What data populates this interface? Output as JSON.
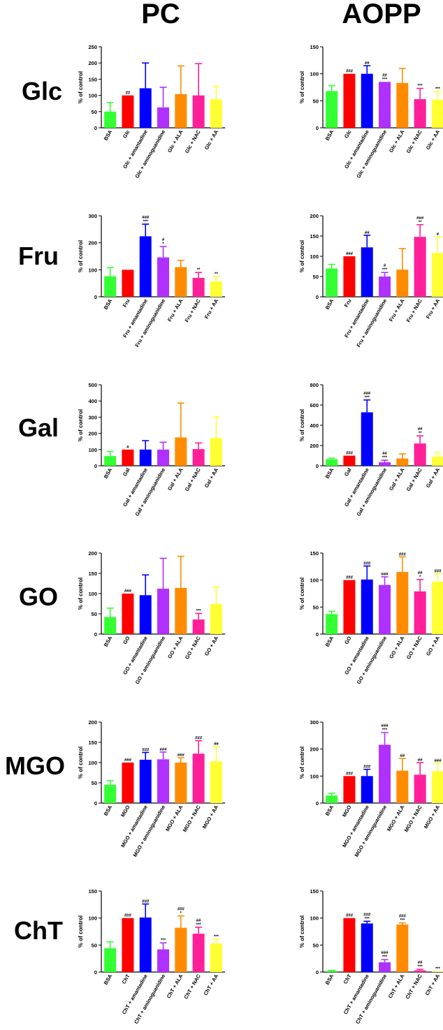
{
  "headers": {
    "pc": "PC",
    "aopp": "AOPP"
  },
  "rows": [
    "Glc",
    "Fru",
    "Gal",
    "GO",
    "MGO",
    "ChT"
  ],
  "colors": [
    "#33ff33",
    "#ff0000",
    "#0000ff",
    "#b030ff",
    "#ff8c00",
    "#ff1f99",
    "#ffff33"
  ],
  "chart_data": [
    {
      "id": "glc-pc",
      "type": "bar",
      "ylabel": "% of control",
      "ylim": [
        0,
        250
      ],
      "ticks": [
        0,
        50,
        100,
        150,
        200,
        250
      ],
      "categories": [
        "BSA",
        "Glc",
        "Glc + amantadine",
        "Glc + aminoguanidine",
        "Glc + ALA",
        "Glc + NAC",
        "Glc + AA"
      ],
      "values": [
        50,
        100,
        122,
        63,
        104,
        100,
        88
      ],
      "errors": [
        28,
        0,
        78,
        62,
        87,
        98,
        40
      ],
      "labels": [
        "",
        "##",
        "",
        "",
        "",
        "",
        ""
      ]
    },
    {
      "id": "glc-aopp",
      "type": "bar",
      "ylabel": "% of control",
      "ylim": [
        0,
        150
      ],
      "ticks": [
        0,
        50,
        100,
        150
      ],
      "categories": [
        "BSA",
        "Glc",
        "Glc + amantadine",
        "Glc + aminoguanidine",
        "Glc + ALA",
        "Glc + NAC",
        "Glc + AA"
      ],
      "values": [
        68,
        100,
        100,
        85,
        83,
        53,
        52
      ],
      "errors": [
        10,
        0,
        15,
        0,
        27,
        20,
        15
      ],
      "labels": [
        "",
        "###",
        "##",
        "##\n***",
        "",
        "***",
        "***"
      ]
    },
    {
      "id": "fru-pc",
      "type": "bar",
      "ylabel": "% of control",
      "ylim": [
        0,
        300
      ],
      "ticks": [
        0,
        100,
        200,
        300
      ],
      "categories": [
        "BSA",
        "Fru",
        "Fru + amantadine",
        "Fru + aminoguanidine",
        "Fru + ALA",
        "Fru + NAC",
        "Fru + AA"
      ],
      "values": [
        76,
        100,
        224,
        146,
        110,
        70,
        57
      ],
      "errors": [
        32,
        0,
        45,
        40,
        25,
        20,
        18
      ],
      "labels": [
        "",
        "",
        "###\n***",
        "#\n*",
        "",
        "**",
        "**"
      ]
    },
    {
      "id": "fru-aopp",
      "type": "bar",
      "ylabel": "% of control",
      "ylim": [
        0,
        200
      ],
      "ticks": [
        0,
        50,
        100,
        150,
        200
      ],
      "categories": [
        "BSA",
        "Fru",
        "Fru + amantadine",
        "Fru + aminoguanidine",
        "Fru + ALA",
        "Fru + NAC",
        "Fru + AA"
      ],
      "values": [
        70,
        100,
        122,
        50,
        67,
        148,
        108
      ],
      "errors": [
        10,
        0,
        30,
        10,
        52,
        30,
        40
      ],
      "labels": [
        "",
        "###",
        "##",
        "#\n***",
        "",
        "###\n**",
        "#"
      ]
    },
    {
      "id": "gal-pc",
      "type": "bar",
      "ylabel": "% of control",
      "ylim": [
        0,
        500
      ],
      "ticks": [
        0,
        100,
        200,
        300,
        400,
        500
      ],
      "categories": [
        "BSA",
        "Gal",
        "Gal + amantadine",
        "Gal + aminoguanidine",
        "Gal + ALA",
        "Gal + NAC",
        "Gal + AA"
      ],
      "values": [
        60,
        100,
        100,
        100,
        175,
        103,
        172
      ],
      "errors": [
        28,
        0,
        55,
        45,
        212,
        38,
        128
      ],
      "labels": [
        "",
        "#",
        "",
        "",
        "",
        "",
        ""
      ]
    },
    {
      "id": "gal-aopp",
      "type": "bar",
      "ylabel": "% of control",
      "ylim": [
        0,
        800
      ],
      "ticks": [
        0,
        200,
        400,
        600,
        800
      ],
      "categories": [
        "BSA",
        "Gal",
        "Gal + amantadine",
        "Gal + aminoguanidine",
        "Gal + ALA",
        "Gal + NAC",
        "Gal + AA"
      ],
      "values": [
        65,
        100,
        528,
        35,
        72,
        220,
        90
      ],
      "errors": [
        10,
        0,
        122,
        20,
        45,
        75,
        40
      ],
      "labels": [
        "",
        "###",
        "###\n***",
        "##\n***",
        "",
        "##\n**",
        ""
      ]
    },
    {
      "id": "go-pc",
      "type": "bar",
      "ylabel": "% of control",
      "ylim": [
        0,
        200
      ],
      "ticks": [
        0,
        50,
        100,
        150,
        200
      ],
      "categories": [
        "BSA",
        "GO",
        "GO + amantadine",
        "GO + aminoguanidine",
        "GO + ALA",
        "GO + NAC",
        "GO + AA"
      ],
      "values": [
        42,
        100,
        96,
        112,
        114,
        36,
        74
      ],
      "errors": [
        22,
        0,
        50,
        75,
        78,
        15,
        42
      ],
      "labels": [
        "",
        "###",
        "",
        "",
        "",
        "***",
        ""
      ]
    },
    {
      "id": "go-aopp",
      "type": "bar",
      "ylabel": "% of control",
      "ylim": [
        0,
        150
      ],
      "ticks": [
        0,
        50,
        100,
        150
      ],
      "categories": [
        "BSA",
        "GO",
        "GO + amantadine",
        "GO + aminoguanidine",
        "GO + ALA",
        "GO + NAC",
        "GO + AA"
      ],
      "values": [
        37,
        100,
        101,
        91,
        115,
        79,
        97
      ],
      "errors": [
        5,
        0,
        25,
        15,
        28,
        22,
        15
      ],
      "labels": [
        "",
        "###",
        "###",
        "###",
        "###",
        "##\n*",
        "###"
      ]
    },
    {
      "id": "mgo-pc",
      "type": "bar",
      "ylabel": "% of control",
      "ylim": [
        0,
        200
      ],
      "ticks": [
        0,
        50,
        100,
        150,
        200
      ],
      "categories": [
        "BSA",
        "MGO",
        "MGO + amantadine",
        "MGO + aminoguanidine",
        "MGO + ALA",
        "MGO + NAC",
        "MGO + AA"
      ],
      "values": [
        45,
        100,
        107,
        108,
        100,
        122,
        103
      ],
      "errors": [
        10,
        0,
        18,
        18,
        12,
        32,
        37
      ],
      "labels": [
        "",
        "###",
        "###",
        "###",
        "###",
        "###",
        "##"
      ]
    },
    {
      "id": "mgo-aopp",
      "type": "bar",
      "ylabel": "% of control",
      "ylim": [
        0,
        300
      ],
      "ticks": [
        0,
        100,
        200,
        300
      ],
      "categories": [
        "BSA",
        "MGO",
        "MGO + amantadine",
        "MGO + aminoguanidine",
        "MGO + ALA",
        "MGO + NAC",
        "MGO + AA"
      ],
      "values": [
        28,
        100,
        100,
        216,
        120,
        105,
        118
      ],
      "errors": [
        8,
        0,
        25,
        45,
        45,
        45,
        30
      ],
      "labels": [
        "",
        "###",
        "###",
        "###\n***",
        "##",
        "##",
        "###"
      ]
    },
    {
      "id": "cht-pc",
      "type": "bar",
      "ylabel": "% of control",
      "ylim": [
        0,
        150
      ],
      "ticks": [
        0,
        50,
        100,
        150
      ],
      "categories": [
        "BSA",
        "ChT",
        "ChT + amantadine",
        "ChT + aminoguanidine",
        "ChT + ALA",
        "ChT + NAC",
        "ChT + AA"
      ],
      "values": [
        44,
        100,
        101,
        42,
        82,
        71,
        53
      ],
      "errors": [
        12,
        0,
        25,
        12,
        22,
        12,
        8
      ],
      "labels": [
        "",
        "###",
        "###",
        "***",
        "###\n*",
        "##\n***",
        "***"
      ]
    },
    {
      "id": "cht-aopp",
      "type": "bar",
      "ylabel": "% of control",
      "ylim": [
        0,
        150
      ],
      "ticks": [
        0,
        50,
        100,
        150
      ],
      "categories": [
        "BSA",
        "ChT",
        "ChT + amantadine",
        "ChT + aminoguanidine",
        "ChT + ALA",
        "ChT + NAC",
        "ChT + AA"
      ],
      "values": [
        2,
        100,
        90,
        18,
        88,
        3,
        1
      ],
      "errors": [
        1,
        0,
        4,
        5,
        3,
        2,
        0
      ],
      "labels": [
        "",
        "###",
        "###\n***",
        "###\n***",
        "###\n***",
        "##\n***",
        "***"
      ]
    }
  ]
}
